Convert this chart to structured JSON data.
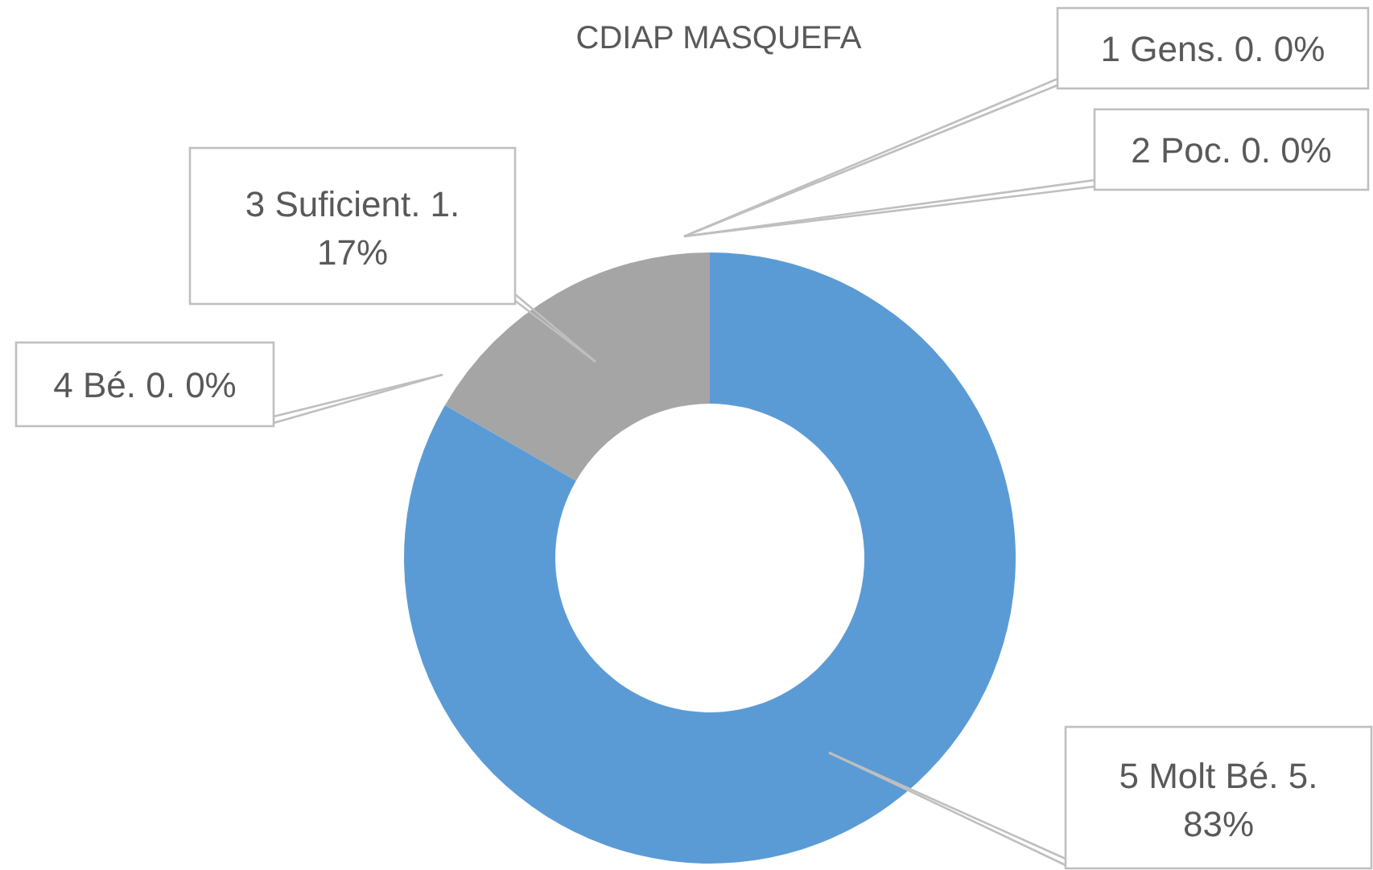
{
  "chart_data": {
    "type": "donut",
    "title": "CDIAP MASQUEFA",
    "categories": [
      "1 Gens.",
      "2 Poc.",
      "3 Suficient.",
      "4 Bé.",
      "5 Molt Bé."
    ],
    "values": [
      0,
      0,
      1,
      0,
      5
    ],
    "colors": [
      null,
      null,
      "#a5a5a5",
      null,
      "#5b9bd5"
    ],
    "value_labels": [
      "0. 0%",
      "0. 0%",
      "1. 17%",
      "0. 0%",
      "5. 83%"
    ]
  }
}
